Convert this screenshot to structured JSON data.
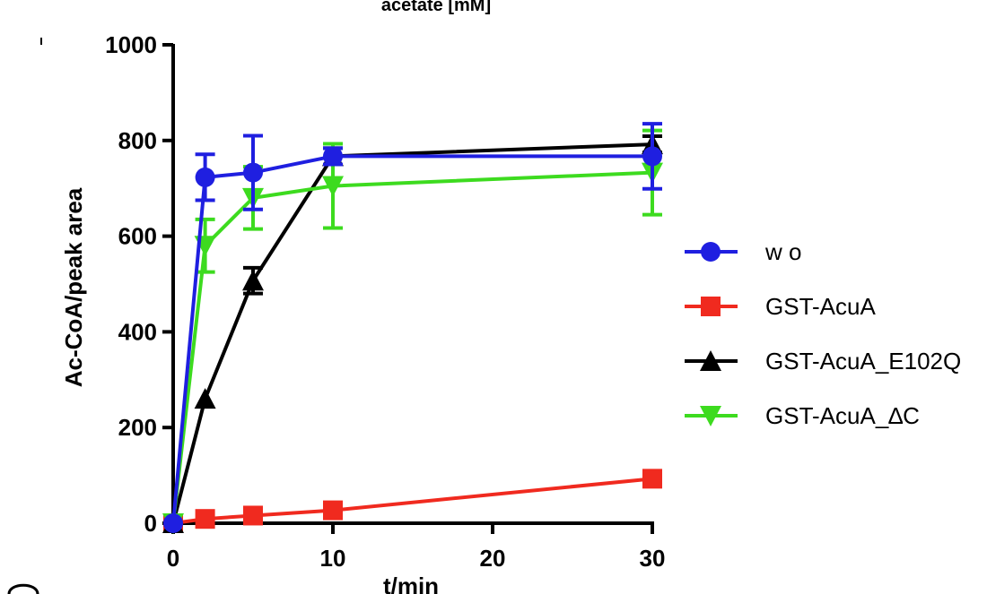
{
  "chart_data": {
    "type": "line",
    "title": "acetate [mM]",
    "xlabel": "t/min",
    "ylabel": "Ac-CoA/peak area",
    "xlim": [
      0,
      30
    ],
    "ylim": [
      0,
      1000
    ],
    "x_ticks": [
      0,
      10,
      20,
      30
    ],
    "y_ticks": [
      0,
      200,
      400,
      600,
      800,
      1000
    ],
    "x_tick_labels": [
      "0",
      "10",
      "20",
      "30"
    ],
    "y_tick_labels": [
      "0",
      "200",
      "400",
      "600",
      "800",
      "1000"
    ],
    "legend_position": "right",
    "x": [
      0,
      2,
      5,
      10,
      30
    ],
    "series": [
      {
        "name": "w o",
        "color": "#1f1fe0",
        "marker": "circle",
        "values": [
          0,
          723,
          733,
          767,
          767
        ],
        "errors": [
          0,
          48,
          77,
          17,
          68
        ]
      },
      {
        "name": "GST-AcuA",
        "color": "#f02a1f",
        "marker": "square",
        "values": [
          0,
          9,
          16,
          27,
          93
        ],
        "errors": [
          0,
          0,
          0,
          0,
          0
        ]
      },
      {
        "name": "GST-AcuA_E102Q",
        "color": "#000000",
        "marker": "triangle-up",
        "values": [
          0,
          260,
          507,
          767,
          792
        ],
        "errors": [
          0,
          0,
          27,
          17,
          17
        ]
      },
      {
        "name": "GST-AcuA_∆C",
        "color": "#3ddb1f",
        "marker": "triangle-down",
        "values": [
          0,
          580,
          680,
          705,
          733
        ],
        "errors": [
          0,
          55,
          65,
          88,
          88
        ]
      }
    ]
  }
}
